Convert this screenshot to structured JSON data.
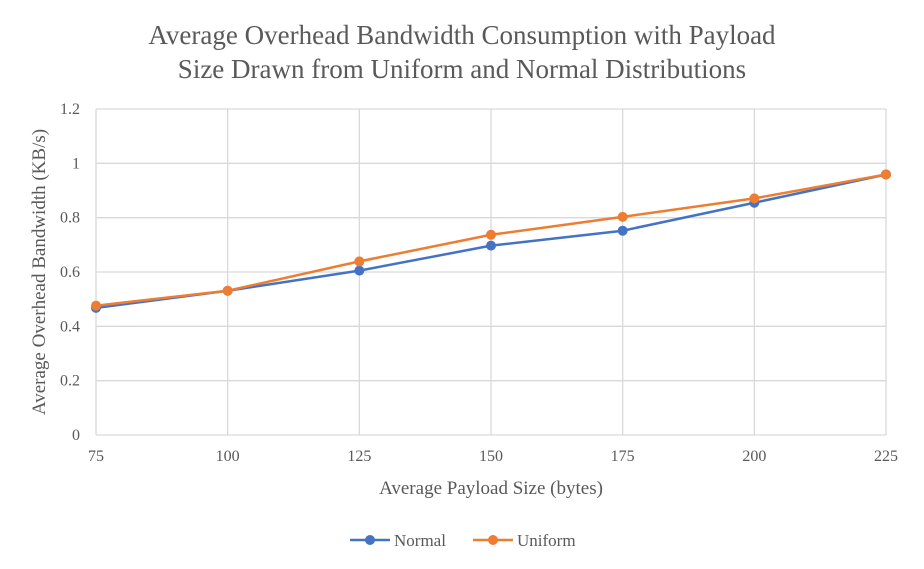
{
  "chart_data": {
    "type": "line",
    "title_lines": [
      "Average Overhead Bandwidth Consumption with Payload",
      "Size Drawn from Uniform and Normal Distributions"
    ],
    "xlabel": "Average Payload Size (bytes)",
    "ylabel": "Average Overhead Bandwidth (KB/s)",
    "x": [
      75,
      100,
      125,
      150,
      175,
      200,
      225
    ],
    "xticks": [
      "75",
      "100",
      "125",
      "150",
      "175",
      "200",
      "225"
    ],
    "yticks": [
      "0",
      "0.2",
      "0.4",
      "0.6",
      "0.8",
      "1",
      "1.2"
    ],
    "ylim": [
      0,
      1.2
    ],
    "xlim": [
      75,
      225
    ],
    "grid": true,
    "legend_position": "bottom",
    "series": [
      {
        "name": "Normal",
        "color": "#4472C4",
        "values": [
          0.468,
          0.531,
          0.605,
          0.697,
          0.752,
          0.855,
          0.959
        ]
      },
      {
        "name": "Uniform",
        "color": "#ED7D31",
        "values": [
          0.476,
          0.531,
          0.639,
          0.737,
          0.803,
          0.871,
          0.959
        ]
      }
    ]
  }
}
